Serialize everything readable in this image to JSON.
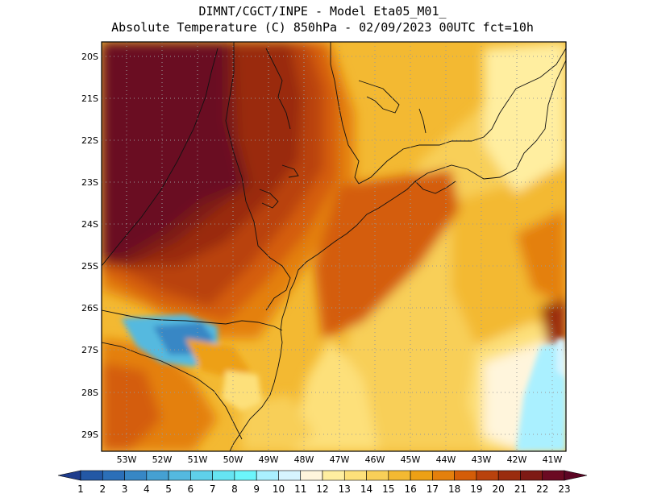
{
  "header": {
    "line1": "DIMNT/CGCT/INPE -  Model Eta05_M01_",
    "line2": "Absolute Temperature (C) 850hPa -  02/09/2023 00UTC fct=10h"
  },
  "map": {
    "lat_labels": [
      "20S",
      "21S",
      "22S",
      "23S",
      "24S",
      "25S",
      "26S",
      "27S",
      "28S",
      "29S"
    ],
    "lon_labels": [
      "53W",
      "52W",
      "51W",
      "50W",
      "49W",
      "48W",
      "47W",
      "46W",
      "45W",
      "44W",
      "43W",
      "42W",
      "41W"
    ]
  },
  "colorbar": {
    "labels": [
      "1",
      "2",
      "3",
      "4",
      "5",
      "6",
      "7",
      "8",
      "9",
      "10",
      "11",
      "12",
      "13",
      "14",
      "15",
      "16",
      "17",
      "18",
      "19",
      "20",
      "21",
      "22",
      "23"
    ],
    "colors": [
      "#1e3c8c",
      "#2358a5",
      "#2b6fb8",
      "#3787c5",
      "#45a0d2",
      "#54b9df",
      "#5fd0ea",
      "#66e4f2",
      "#6cf5fb",
      "#aaf0ff",
      "#d6f4ff",
      "#fff5dc",
      "#ffeea0",
      "#fde07a",
      "#f8cf58",
      "#f3b932",
      "#eda015",
      "#e4800c",
      "#d45d08",
      "#b9420d",
      "#9a2c0e",
      "#7e1a14",
      "#6b0a22",
      "#5c0624"
    ]
  }
}
